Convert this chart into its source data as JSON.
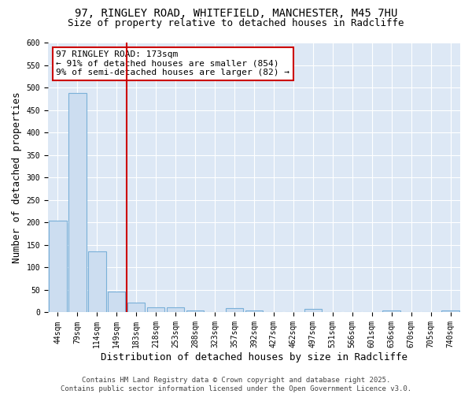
{
  "title1": "97, RINGLEY ROAD, WHITEFIELD, MANCHESTER, M45 7HU",
  "title2": "Size of property relative to detached houses in Radcliffe",
  "xlabel": "Distribution of detached houses by size in Radcliffe",
  "ylabel": "Number of detached properties",
  "categories": [
    "44sqm",
    "79sqm",
    "114sqm",
    "149sqm",
    "183sqm",
    "218sqm",
    "253sqm",
    "288sqm",
    "323sqm",
    "357sqm",
    "392sqm",
    "427sqm",
    "462sqm",
    "497sqm",
    "531sqm",
    "566sqm",
    "601sqm",
    "636sqm",
    "670sqm",
    "705sqm",
    "740sqm"
  ],
  "values": [
    204,
    487,
    135,
    46,
    22,
    11,
    12,
    5,
    1,
    9,
    5,
    1,
    1,
    7,
    1,
    1,
    1,
    4,
    1,
    1,
    5
  ],
  "bar_color": "#ccddf0",
  "bar_edge_color": "#7ab0d8",
  "plot_bg_color": "#dde8f5",
  "fig_bg_color": "#ffffff",
  "grid_color": "#ffffff",
  "vline_x_index": 4,
  "vline_color": "#cc0000",
  "annotation_title": "97 RINGLEY ROAD: 173sqm",
  "annotation_line1": "← 91% of detached houses are smaller (854)",
  "annotation_line2": "9% of semi-detached houses are larger (82) →",
  "annotation_box_color": "#ffffff",
  "annotation_box_edge": "#cc0000",
  "footer1": "Contains HM Land Registry data © Crown copyright and database right 2025.",
  "footer2": "Contains public sector information licensed under the Open Government Licence v3.0.",
  "ylim": [
    0,
    600
  ],
  "yticks": [
    0,
    50,
    100,
    150,
    200,
    250,
    300,
    350,
    400,
    450,
    500,
    550,
    600
  ],
  "title_fontsize": 10,
  "subtitle_fontsize": 9,
  "axis_label_fontsize": 9,
  "tick_fontsize": 7,
  "annotation_fontsize": 8,
  "footer_fontsize": 6.5
}
